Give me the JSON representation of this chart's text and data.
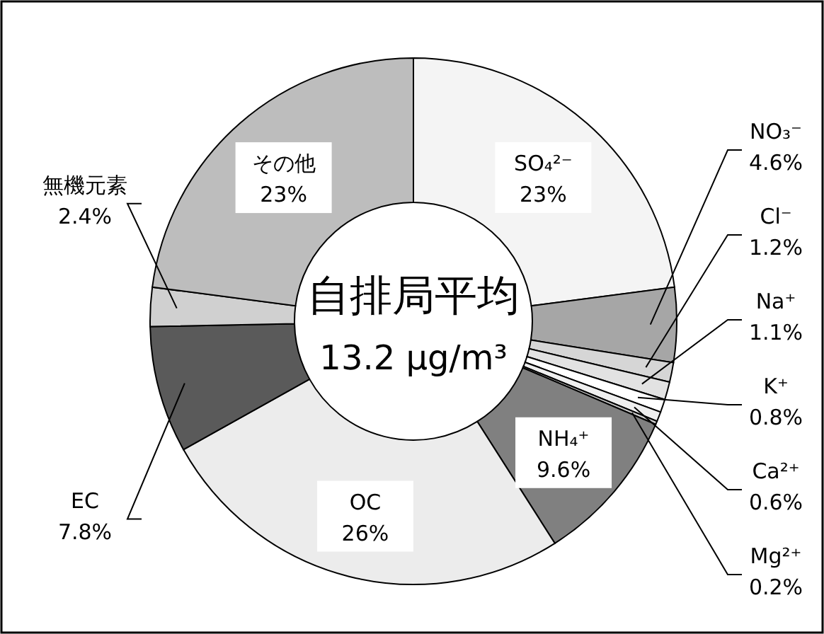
{
  "chart_data": {
    "type": "donut",
    "title": "自排局平均",
    "subtitle": "13.2 µg/m³",
    "categories": [
      "SO₄²⁻",
      "NO₃⁻",
      "Cl⁻",
      "Na⁺",
      "K⁺",
      "Ca²⁺",
      "Mg²⁺",
      "NH₄⁺",
      "OC",
      "EC",
      "無機元素",
      "その他"
    ],
    "values": [
      23,
      4.6,
      1.2,
      1.1,
      0.8,
      0.6,
      0.2,
      9.6,
      26,
      7.8,
      2.4,
      23
    ],
    "value_labels": [
      "23%",
      "4.6%",
      "1.2%",
      "1.1%",
      "0.8%",
      "0.6%",
      "0.2%",
      "9.6%",
      "26%",
      "7.8%",
      "2.4%",
      "23%"
    ],
    "colors": [
      "#f4f4f4",
      "#a6a6a6",
      "#d6d6d6",
      "#e2e2e2",
      "#ffffff",
      "#efefef",
      "#cccccc",
      "#808080",
      "#ececec",
      "#5a5a5a",
      "#d0d0d0",
      "#bdbdbd"
    ]
  }
}
